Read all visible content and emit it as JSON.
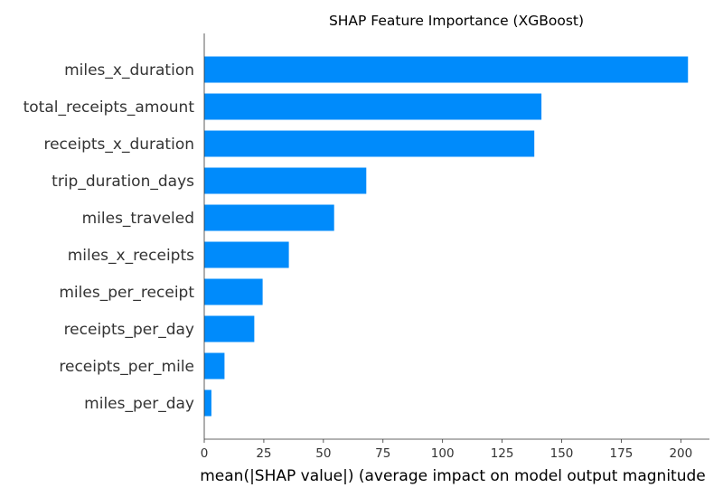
{
  "chart_data": {
    "type": "bar",
    "orientation": "horizontal",
    "title": "SHAP Feature Importance (XGBoost)",
    "xlabel": "mean(|SHAP value|) (average impact on model output magnitude",
    "ylabel": "",
    "categories": [
      "miles_x_duration",
      "total_receipts_amount",
      "receipts_x_duration",
      "trip_duration_days",
      "miles_traveled",
      "miles_x_receipts",
      "miles_per_receipt",
      "receipts_per_day",
      "receipts_per_mile",
      "miles_per_day"
    ],
    "values": [
      203,
      141.5,
      138.5,
      68,
      54.5,
      35.5,
      24.5,
      21,
      8.5,
      3
    ],
    "xlim": [
      0,
      212
    ],
    "xticks": [
      0,
      25,
      50,
      75,
      100,
      125,
      150,
      175,
      200
    ],
    "grid": false,
    "bar_color": "#008bfb",
    "axis_color": "#333333"
  }
}
